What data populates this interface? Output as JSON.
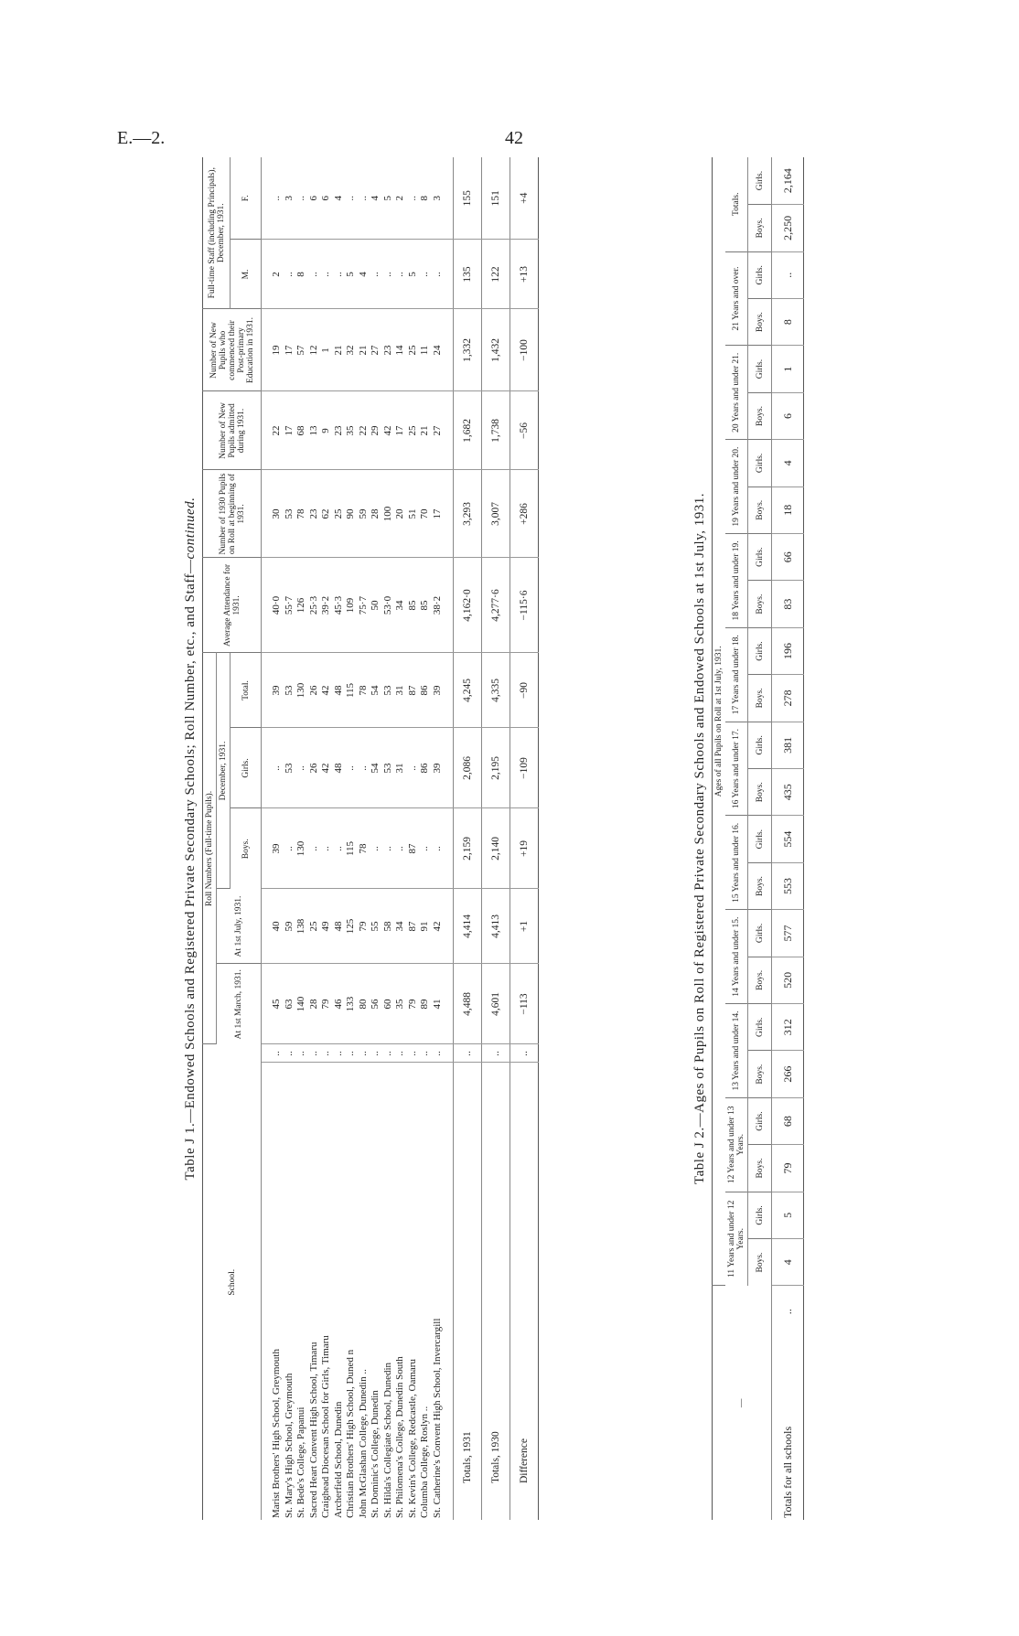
{
  "page_header": {
    "ref": "E.—2.",
    "page_number": "42"
  },
  "table_j1": {
    "title": "Table J 1.—Endowed Schools and Registered Private Secondary Schools; Roll Number, etc., and Staff—",
    "title_continued": "continued.",
    "headers": {
      "school": "School.",
      "roll_numbers": "Roll Numbers (Full-time Pupils).",
      "at_march": "At 1st March, 1931.",
      "at_july": "At 1st July, 1931.",
      "december": "December, 1931.",
      "boys": "Boys.",
      "girls": "Girls.",
      "total": "Total.",
      "avg_attendance": "Average Attendance for 1931.",
      "pupils_1930": "Number of 1930 Pupils on Roll at beginning of 1931.",
      "new_admitted": "Number of New Pupils admitted during 1931.",
      "new_post_primary": "Number of New Pupils who commenced their Post-primary Education in 1931.",
      "staff": "Full-time Staff (including Principals), December, 1931.",
      "m": "M.",
      "f": "F."
    },
    "rows": [
      [
        "Marist Brothers' High School, Greymouth",
        "..",
        "45",
        "40",
        "39",
        "..",
        "39",
        "40·0",
        "30",
        "22",
        "19",
        "2",
        ".."
      ],
      [
        "St. Mary's High School, Greymouth",
        "..",
        "63",
        "59",
        "..",
        "53",
        "53",
        "55·7",
        "53",
        "17",
        "17",
        "..",
        "3"
      ],
      [
        "St. Bede's College, Papanui",
        "..",
        "140",
        "138",
        "130",
        "..",
        "130",
        "126",
        "78",
        "68",
        "57",
        "8",
        ".."
      ],
      [
        "Sacred Heart Convent High School, Timaru",
        "..",
        "28",
        "25",
        "..",
        "26",
        "26",
        "25·3",
        "23",
        "13",
        "12",
        "..",
        "6"
      ],
      [
        "Craighead Diocesan School for Girls, Timaru",
        "..",
        "79",
        "49",
        "..",
        "42",
        "42",
        "39·2",
        "62",
        "9",
        "1",
        "..",
        "6"
      ],
      [
        "Archerfield School, Dunedin",
        "..",
        "46",
        "48",
        "..",
        "48",
        "48",
        "45·3",
        "25",
        "23",
        "21",
        "..",
        "4"
      ],
      [
        "Christian Brothers' High School, Duned n",
        "..",
        "133",
        "125",
        "115",
        "..",
        "115",
        "109",
        "90",
        "35",
        "32",
        "5",
        ".."
      ],
      [
        "John McGlashan College, Dunedin ..",
        "..",
        "80",
        "79",
        "78",
        "..",
        "78",
        "75·7",
        "59",
        "22",
        "21",
        "4",
        ".."
      ],
      [
        "St. Dominic's College, Dunedin",
        "..",
        "56",
        "55",
        "..",
        "54",
        "54",
        "50",
        "28",
        "29",
        "27",
        "..",
        "4"
      ],
      [
        "St. Hilda's Collegiate School, Dunedin",
        "..",
        "60",
        "58",
        "..",
        "53",
        "53",
        "53·0",
        "100",
        "42",
        "23",
        "..",
        "5"
      ],
      [
        "St. Philomena's College, Dunedin South",
        "..",
        "35",
        "34",
        "..",
        "31",
        "31",
        "34",
        "20",
        "17",
        "14",
        "..",
        "2"
      ],
      [
        "St. Kevin's College, Redcastle, Oamaru",
        "..",
        "79",
        "87",
        "87",
        "..",
        "87",
        "85",
        "51",
        "25",
        "25",
        "5",
        ".."
      ],
      [
        "Columba College, Roslyn ..",
        "..",
        "89",
        "91",
        "..",
        "86",
        "86",
        "85",
        "70",
        "21",
        "11",
        "..",
        "8"
      ],
      [
        "St. Catherine's Convent High School, Invercargill",
        "..",
        "41",
        "42",
        "..",
        "39",
        "39",
        "38·2",
        "17",
        "27",
        "24",
        "..",
        "3"
      ]
    ],
    "totals": [
      [
        "Totals, 1931",
        "..",
        "4,488",
        "4,414",
        "2,159",
        "2,086",
        "4,245",
        "4,162·0",
        "3,293",
        "1,682",
        "1,332",
        "135",
        "155"
      ],
      [
        "Totals, 1930",
        "..",
        "4,601",
        "4,413",
        "2,140",
        "2,195",
        "4,335",
        "4,277·6",
        "3,007",
        "1,738",
        "1,432",
        "122",
        "151"
      ],
      [
        "Difference",
        "..",
        "−113",
        "+1",
        "+19",
        "−109",
        "−90",
        "−115·6",
        "+286",
        "−56",
        "−100",
        "+13",
        "+4"
      ]
    ]
  },
  "table_j2": {
    "title": "Table J 2.—Ages of Pupils on Roll of Registered Private Secondary Schools and Endowed Schools at 1st July, 1931.",
    "corner": "—",
    "span_header": "Ages of all Pupils on Roll at 1st July, 1931.",
    "age_groups": [
      "11 Years and under 12 Years.",
      "12 Years and under 13 Years.",
      "13 Years and under 14.",
      "14 Years and under 15.",
      "15 Years and under 16.",
      "16 Years and under 17.",
      "17 Years and under 18.",
      "18 Years and under 19.",
      "19 Years and under 20.",
      "20 Years and under 21.",
      "21 Years and over.",
      "Totals."
    ],
    "boys": "Boys.",
    "girls": "Girls.",
    "row_label": "Totals for all schools",
    "row_dots": "..",
    "values": [
      "4",
      "5",
      "79",
      "68",
      "266",
      "312",
      "520",
      "577",
      "553",
      "554",
      "435",
      "381",
      "278",
      "196",
      "83",
      "66",
      "18",
      "4",
      "6",
      "1",
      "8",
      "..",
      "2,250",
      "2,164"
    ]
  }
}
